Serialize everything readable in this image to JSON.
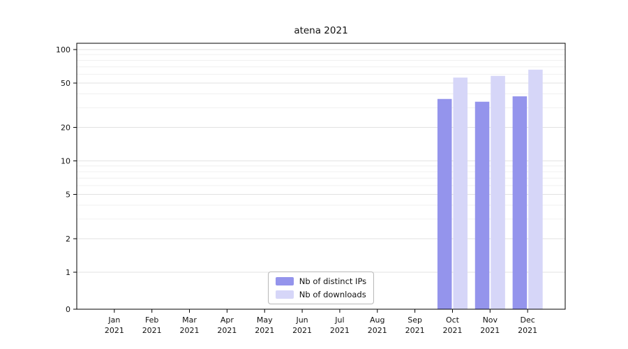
{
  "title": "atena 2021",
  "chart_data": {
    "type": "bar",
    "title": "atena 2021",
    "categories": [
      "Jan",
      "Feb",
      "Mar",
      "Apr",
      "May",
      "Jun",
      "Jul",
      "Aug",
      "Sep",
      "Oct",
      "Nov",
      "Dec"
    ],
    "category_year": "2021",
    "series": [
      {
        "name": "Nb of distinct IPs",
        "color": "#9494ec",
        "values": [
          null,
          null,
          null,
          null,
          null,
          null,
          null,
          null,
          null,
          36,
          34,
          38
        ]
      },
      {
        "name": "Nb of downloads",
        "color": "#d6d6f8",
        "values": [
          null,
          null,
          null,
          null,
          null,
          null,
          null,
          null,
          null,
          56,
          58,
          66
        ]
      }
    ],
    "yticks": [
      0,
      1,
      2,
      5,
      10,
      20,
      50,
      100
    ],
    "yscale": "symlog",
    "ylim": [
      0,
      114
    ],
    "xlabel": "",
    "ylabel": "",
    "grid": true,
    "legend_position": "lower center"
  }
}
